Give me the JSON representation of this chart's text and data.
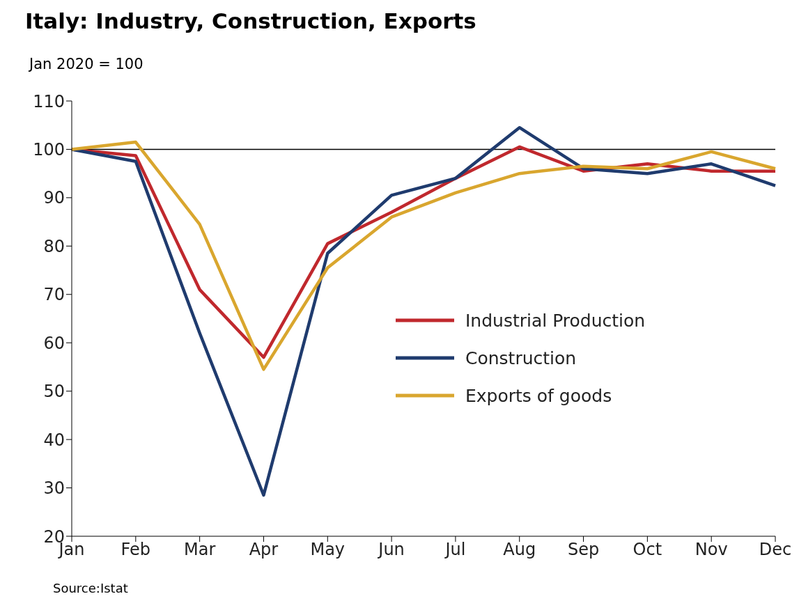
{
  "chart_data": {
    "type": "line",
    "title": "Italy: Industry, Construction, Exports",
    "subtitle": "Jan 2020 = 100",
    "annotations": [
      "Source:Istat"
    ],
    "categories": [
      "Jan",
      "Feb",
      "Mar",
      "Apr",
      "May",
      "Jun",
      "Jul",
      "Aug",
      "Sep",
      "Oct",
      "Nov",
      "Dec"
    ],
    "series": [
      {
        "name": "Industrial Production",
        "color": "#c0282d",
        "values": [
          100,
          98.7,
          71,
          57,
          80.5,
          87,
          94,
          100.5,
          95.5,
          97,
          95.5,
          95.5
        ]
      },
      {
        "name": "Construction",
        "color": "#1f3b6e",
        "values": [
          100,
          97.5,
          62,
          28.5,
          78.5,
          90.5,
          94,
          104.5,
          96,
          95,
          97,
          92.5
        ]
      },
      {
        "name": "Exports of goods",
        "color": "#d9a62e",
        "values": [
          100,
          101.5,
          84.5,
          54.5,
          75.5,
          86,
          91,
          95,
          96.5,
          96,
          99.5,
          96
        ]
      }
    ],
    "ylim": [
      20,
      110
    ],
    "yticks": [
      20,
      30,
      40,
      50,
      60,
      70,
      80,
      90,
      100,
      110
    ],
    "grid": false,
    "legend": "right",
    "marker": "none",
    "line_style": "solid",
    "ref_lines": [
      {
        "axis": "y",
        "value": 100,
        "color": "#000000"
      }
    ]
  }
}
